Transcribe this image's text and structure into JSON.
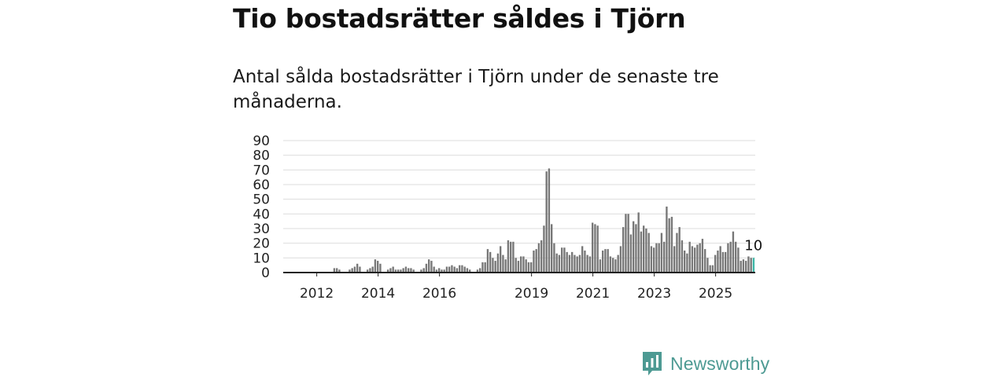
{
  "header": {
    "title": "Tio bostadsrätter såldes i Tjörn",
    "subtitle": "Antal sålda bostadsrätter i Tjörn under de senaste tre månaderna."
  },
  "brand": {
    "name": "Newsworthy",
    "icon": "newsworthy-logo-icon",
    "color": "#4d9a93"
  },
  "colors": {
    "bar": "#777777",
    "highlight": "#3bb5a5",
    "grid": "#dddddd",
    "axis": "#222222"
  },
  "chart_data": {
    "type": "bar",
    "ylim": [
      0,
      90
    ],
    "yticks": [
      0,
      10,
      20,
      30,
      40,
      50,
      60,
      70,
      80,
      90
    ],
    "xticks": [
      "2012",
      "2014",
      "2016",
      "2019",
      "2021",
      "2023",
      "2025"
    ],
    "grid": true,
    "start_month": "2011-01",
    "highlight_label": "10",
    "values": [
      0,
      0,
      0,
      0,
      0,
      0,
      0,
      0,
      0,
      0,
      0,
      0,
      0,
      0,
      0,
      0,
      0,
      0,
      0,
      3,
      3,
      2,
      0,
      0,
      0,
      2,
      3,
      4,
      6,
      4,
      0,
      0,
      2,
      3,
      4,
      9,
      8,
      6,
      0,
      0,
      2,
      3,
      4,
      2,
      2,
      2,
      3,
      4,
      3,
      3,
      2,
      0,
      0,
      2,
      3,
      6,
      9,
      8,
      4,
      2,
      3,
      2,
      2,
      4,
      4,
      5,
      4,
      3,
      5,
      5,
      4,
      3,
      2,
      0,
      0,
      2,
      3,
      7,
      7,
      16,
      14,
      10,
      8,
      13,
      18,
      12,
      9,
      22,
      21,
      21,
      10,
      8,
      11,
      11,
      9,
      7,
      7,
      15,
      16,
      20,
      22,
      32,
      69,
      71,
      33,
      20,
      13,
      12,
      17,
      17,
      14,
      12,
      14,
      12,
      11,
      12,
      18,
      15,
      12,
      11,
      34,
      33,
      32,
      9,
      15,
      16,
      16,
      11,
      10,
      9,
      12,
      18,
      31,
      40,
      40,
      26,
      35,
      33,
      41,
      28,
      32,
      30,
      27,
      18,
      17,
      20,
      20,
      27,
      21,
      45,
      37,
      38,
      18,
      27,
      31,
      22,
      15,
      13,
      21,
      18,
      17,
      19,
      20,
      23,
      16,
      10,
      5,
      5,
      12,
      15,
      18,
      14,
      14,
      20,
      21,
      28,
      21,
      17,
      8,
      9,
      8,
      11,
      10,
      10
    ]
  }
}
